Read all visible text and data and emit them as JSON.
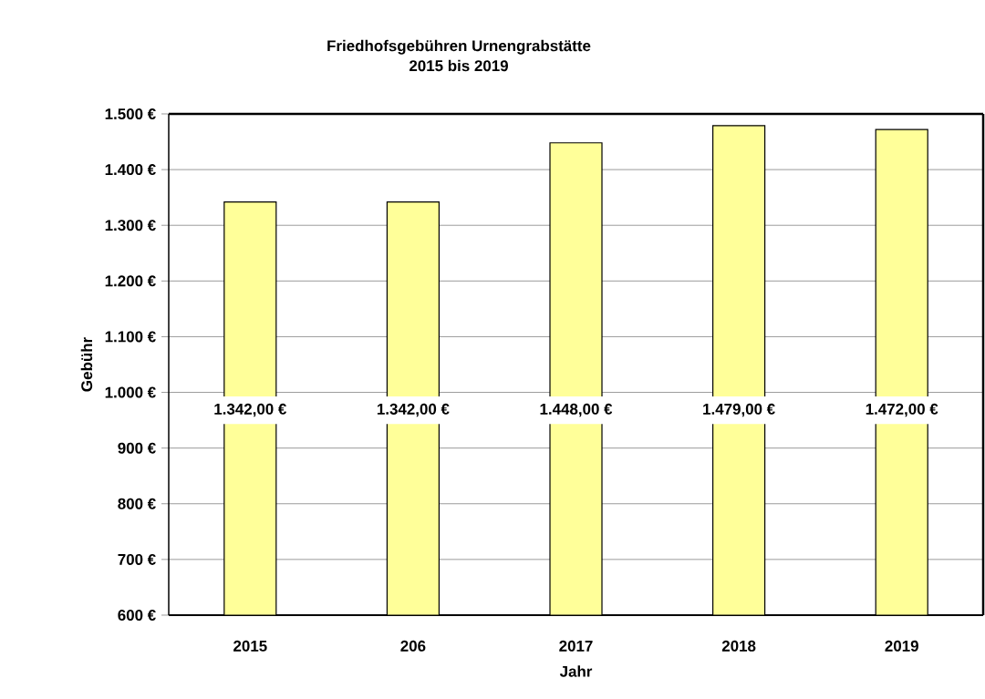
{
  "chart_data": {
    "type": "bar",
    "title": "Friedhofsgebühren Urnengrabstätte",
    "subtitle": "2015 bis 2019",
    "xlabel": "Jahr",
    "ylabel": "Gebühr",
    "categories": [
      "2015",
      "206",
      "2017",
      "2018",
      "2019"
    ],
    "values": [
      1342,
      1342,
      1448,
      1479,
      1472
    ],
    "value_labels": [
      "1.342,00 €",
      "1.342,00 €",
      "1.448,00 €",
      "1.479,00 €",
      "1.472,00 €"
    ],
    "color": "#ffff99",
    "ylim": [
      600,
      1500
    ],
    "yticks": [
      {
        "value": 600,
        "label": "600 €"
      },
      {
        "value": 700,
        "label": "700 €"
      },
      {
        "value": 800,
        "label": "800 €"
      },
      {
        "value": 900,
        "label": "900 €"
      },
      {
        "value": 1000,
        "label": "1.000 €"
      },
      {
        "value": 1100,
        "label": "1.100 €"
      },
      {
        "value": 1200,
        "label": "1.200 €"
      },
      {
        "value": 1300,
        "label": "1.300 €"
      },
      {
        "value": 1400,
        "label": "1.400 €"
      },
      {
        "value": 1500,
        "label": "1.500 €"
      }
    ],
    "grid": "y"
  }
}
